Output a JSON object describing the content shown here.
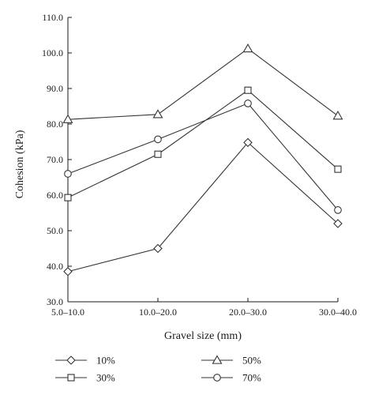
{
  "chart_data": {
    "type": "line",
    "title": "",
    "xlabel": "Gravel size (mm)",
    "ylabel": "Cohesion (kPa)",
    "categories": [
      "5.0–10.0",
      "10.0–20.0",
      "20.0–30.0",
      "30.0–40.0"
    ],
    "ylim": [
      30.0,
      110.0
    ],
    "yticks": [
      "30.0",
      "40.0",
      "50.0",
      "60.0",
      "70.0",
      "80.0",
      "90.0",
      "100.0",
      "110.0"
    ],
    "grid": false,
    "legend_position": "bottom",
    "series": [
      {
        "name": "10%",
        "marker": "diamond",
        "values": [
          38.5,
          45.0,
          74.8,
          52.0
        ]
      },
      {
        "name": "30%",
        "marker": "square",
        "values": [
          59.3,
          71.5,
          89.5,
          67.3
        ]
      },
      {
        "name": "50%",
        "marker": "triangle",
        "values": [
          81.3,
          82.7,
          101.2,
          82.3
        ]
      },
      {
        "name": "70%",
        "marker": "circle",
        "values": [
          66.0,
          75.7,
          85.8,
          55.8
        ]
      }
    ],
    "colors": {
      "line": "#333333",
      "marker_fill": "#ffffff",
      "axis": "#1a1a1a"
    }
  }
}
